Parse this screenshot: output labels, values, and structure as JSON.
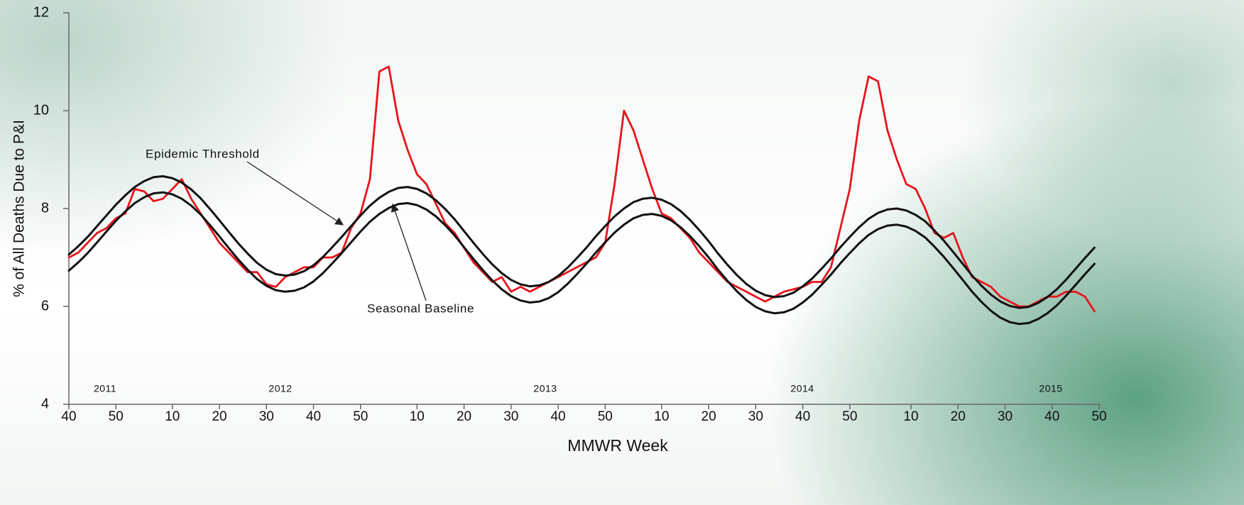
{
  "chart_data": {
    "type": "line",
    "x_label": "MMWR Week",
    "y_label": "% of All Deaths Due to P&I",
    "year_labels": [
      "2011",
      "2012",
      "2013",
      "2014",
      "2015"
    ],
    "xlim": [
      0,
      219
    ],
    "ylim": [
      4,
      12
    ],
    "yticks": [
      4,
      6,
      8,
      10,
      12
    ],
    "xticks": [
      {
        "value": 0,
        "label": "40"
      },
      {
        "value": 10,
        "label": "50"
      },
      {
        "value": 22,
        "label": "10"
      },
      {
        "value": 32,
        "label": "20"
      },
      {
        "value": 42,
        "label": "30"
      },
      {
        "value": 52,
        "label": "40"
      },
      {
        "value": 62,
        "label": "50"
      },
      {
        "value": 74,
        "label": "10"
      },
      {
        "value": 84,
        "label": "20"
      },
      {
        "value": 94,
        "label": "30"
      },
      {
        "value": 104,
        "label": "40"
      },
      {
        "value": 114,
        "label": "50"
      },
      {
        "value": 126,
        "label": "10"
      },
      {
        "value": 136,
        "label": "20"
      },
      {
        "value": 146,
        "label": "30"
      },
      {
        "value": 156,
        "label": "40"
      },
      {
        "value": 166,
        "label": "50"
      },
      {
        "value": 179,
        "label": "10"
      },
      {
        "value": 189,
        "label": "20"
      },
      {
        "value": 199,
        "label": "30"
      },
      {
        "value": 209,
        "label": "40"
      },
      {
        "value": 219,
        "label": "50"
      }
    ],
    "x": [
      0,
      2,
      4,
      6,
      8,
      10,
      12,
      14,
      16,
      18,
      20,
      22,
      24,
      26,
      28,
      30,
      32,
      34,
      36,
      38,
      40,
      42,
      44,
      46,
      48,
      50,
      52,
      54,
      56,
      58,
      60,
      62,
      64,
      66,
      68,
      70,
      72,
      74,
      76,
      78,
      80,
      82,
      84,
      86,
      88,
      90,
      92,
      94,
      96,
      98,
      100,
      102,
      104,
      106,
      108,
      110,
      112,
      114,
      116,
      118,
      120,
      122,
      124,
      126,
      128,
      130,
      132,
      134,
      136,
      138,
      140,
      142,
      144,
      146,
      148,
      150,
      152,
      154,
      156,
      158,
      160,
      162,
      164,
      166,
      168,
      170,
      172,
      174,
      176,
      178,
      180,
      182,
      184,
      186,
      188,
      190,
      192,
      194,
      196,
      198,
      200,
      202,
      204,
      206,
      208,
      210,
      212,
      214,
      216,
      218
    ],
    "series": [
      {
        "color": "#e8141b",
        "values": [
          7.0,
          7.1,
          7.3,
          7.5,
          7.6,
          7.8,
          7.9,
          8.4,
          8.35,
          8.15,
          8.2,
          8.4,
          8.6,
          8.2,
          7.9,
          7.6,
          7.3,
          7.1,
          6.9,
          6.7,
          6.7,
          6.45,
          6.4,
          6.6,
          6.7,
          6.8,
          6.8,
          7.0,
          7.0,
          7.1,
          7.6,
          7.9,
          8.6,
          10.8,
          10.9,
          9.8,
          9.2,
          8.7,
          8.5,
          8.1,
          7.7,
          7.5,
          7.2,
          6.9,
          6.7,
          6.5,
          6.6,
          6.3,
          6.4,
          6.3,
          6.4,
          6.5,
          6.6,
          6.7,
          6.8,
          6.9,
          7.0,
          7.3,
          8.5,
          10.0,
          9.6,
          9.0,
          8.4,
          7.9,
          7.8,
          7.6,
          7.4,
          7.1,
          6.9,
          6.7,
          6.5,
          6.4,
          6.3,
          6.2,
          6.1,
          6.2,
          6.3,
          6.35,
          6.4,
          6.5,
          6.5,
          6.8,
          7.6,
          8.4,
          9.8,
          10.7,
          10.6,
          9.6,
          9.0,
          8.5,
          8.4,
          8.0,
          7.5,
          7.4,
          7.5,
          7.0,
          6.6,
          6.5,
          6.4,
          6.2,
          6.1,
          6.0,
          6.0,
          6.1,
          6.2,
          6.2,
          6.3,
          6.3,
          6.2,
          5.9
        ]
      },
      {
        "name": "Epidemic Threshold",
        "color": "#111111",
        "values": [
          7.06,
          7.23,
          7.42,
          7.64,
          7.86,
          8.08,
          8.27,
          8.44,
          8.56,
          8.64,
          8.66,
          8.62,
          8.53,
          8.39,
          8.21,
          7.99,
          7.76,
          7.52,
          7.29,
          7.08,
          6.89,
          6.75,
          6.66,
          6.63,
          6.65,
          6.72,
          6.84,
          7.01,
          7.21,
          7.42,
          7.64,
          7.86,
          8.06,
          8.22,
          8.34,
          8.42,
          8.44,
          8.4,
          8.31,
          8.17,
          7.99,
          7.78,
          7.54,
          7.3,
          7.07,
          6.86,
          6.68,
          6.54,
          6.45,
          6.41,
          6.43,
          6.5,
          6.62,
          6.79,
          6.99,
          7.2,
          7.43,
          7.64,
          7.84,
          8.0,
          8.13,
          8.2,
          8.22,
          8.18,
          8.09,
          7.95,
          7.77,
          7.56,
          7.33,
          7.08,
          6.85,
          6.64,
          6.46,
          6.32,
          6.23,
          6.19,
          6.21,
          6.28,
          6.41,
          6.57,
          6.77,
          6.98,
          7.21,
          7.42,
          7.62,
          7.79,
          7.91,
          7.98,
          8.0,
          7.96,
          7.87,
          7.74,
          7.55,
          7.34,
          7.11,
          6.87,
          6.63,
          6.42,
          6.24,
          6.1,
          6.01,
          5.97,
          5.99,
          6.07,
          6.19,
          6.35,
          6.55,
          6.77,
          6.99,
          7.2
        ]
      },
      {
        "name": "Seasonal Baseline",
        "color": "#111111",
        "values": [
          6.73,
          6.9,
          7.09,
          7.31,
          7.53,
          7.75,
          7.94,
          8.11,
          8.23,
          8.31,
          8.33,
          8.29,
          8.2,
          8.06,
          7.88,
          7.66,
          7.43,
          7.19,
          6.96,
          6.75,
          6.56,
          6.42,
          6.33,
          6.3,
          6.32,
          6.39,
          6.51,
          6.68,
          6.88,
          7.09,
          7.31,
          7.53,
          7.73,
          7.89,
          8.01,
          8.09,
          8.11,
          8.07,
          7.98,
          7.84,
          7.66,
          7.45,
          7.21,
          6.97,
          6.74,
          6.53,
          6.35,
          6.21,
          6.12,
          6.08,
          6.1,
          6.17,
          6.29,
          6.46,
          6.66,
          6.87,
          7.1,
          7.31,
          7.51,
          7.67,
          7.8,
          7.87,
          7.89,
          7.85,
          7.76,
          7.62,
          7.44,
          7.23,
          7.0,
          6.75,
          6.52,
          6.31,
          6.13,
          5.99,
          5.9,
          5.86,
          5.88,
          5.95,
          6.08,
          6.24,
          6.44,
          6.65,
          6.88,
          7.09,
          7.29,
          7.46,
          7.58,
          7.65,
          7.67,
          7.63,
          7.54,
          7.41,
          7.22,
          7.01,
          6.78,
          6.54,
          6.3,
          6.09,
          5.91,
          5.77,
          5.68,
          5.64,
          5.66,
          5.74,
          5.86,
          6.02,
          6.22,
          6.44,
          6.66,
          6.87
        ]
      }
    ]
  }
}
